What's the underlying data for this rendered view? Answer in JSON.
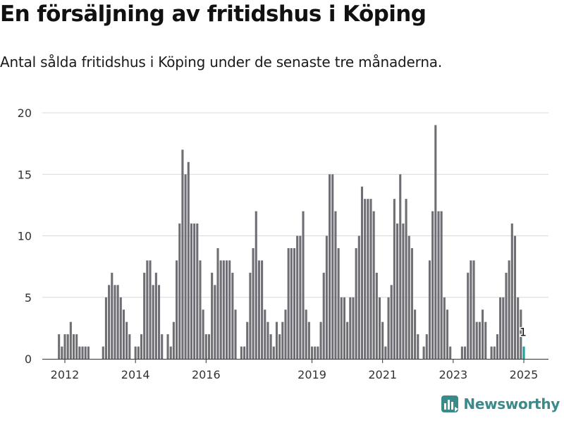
{
  "title": "En försäljning av fritidshus i Köping",
  "subtitle": "Antal sålda fritidshus i Köping under de senaste tre månaderna.",
  "brand": "Newsworthy",
  "colors": {
    "bar": "#6e6e74",
    "highlight": "#1f9e9a",
    "grid": "#d9d9d9",
    "axis": "#333333",
    "brand": "#3a8a8a"
  },
  "chart_data": {
    "type": "bar",
    "title": "En försäljning av fritidshus i Köping",
    "xlabel": "",
    "ylabel": "",
    "ylim": [
      0,
      20
    ],
    "yticks": [
      0,
      5,
      10,
      15,
      20
    ],
    "grid": true,
    "x_start": "2012-01",
    "x_end": "2025-01",
    "xticks": [
      {
        "label": "2012",
        "date": "2012-01"
      },
      {
        "label": "2014",
        "date": "2014-01"
      },
      {
        "label": "2016",
        "date": "2016-01"
      },
      {
        "label": "2019",
        "date": "2019-01"
      },
      {
        "label": "2021",
        "date": "2021-01"
      },
      {
        "label": "2023",
        "date": "2023-01"
      },
      {
        "label": "2025",
        "date": "2025-01"
      }
    ],
    "values": [
      2,
      1,
      2,
      2,
      3,
      2,
      2,
      1,
      1,
      1,
      1,
      0,
      0,
      0,
      0,
      1,
      5,
      6,
      7,
      6,
      6,
      5,
      4,
      3,
      2,
      0,
      1,
      1,
      2,
      7,
      8,
      8,
      6,
      7,
      6,
      2,
      0,
      2,
      1,
      3,
      8,
      11,
      17,
      15,
      16,
      11,
      11,
      11,
      8,
      4,
      2,
      2,
      7,
      6,
      9,
      8,
      8,
      8,
      8,
      7,
      4,
      0,
      1,
      1,
      3,
      7,
      9,
      12,
      8,
      8,
      4,
      3,
      2,
      1,
      3,
      2,
      3,
      4,
      9,
      9,
      9,
      10,
      10,
      12,
      4,
      3,
      1,
      1,
      1,
      3,
      7,
      10,
      15,
      15,
      12,
      9,
      5,
      5,
      3,
      5,
      5,
      9,
      10,
      14,
      13,
      13,
      13,
      12,
      7,
      5,
      3,
      1,
      5,
      6,
      13,
      11,
      15,
      11,
      13,
      10,
      9,
      4,
      2,
      0,
      1,
      2,
      8,
      12,
      19,
      12,
      12,
      5,
      4,
      1,
      0,
      0,
      0,
      1,
      1,
      7,
      8,
      8,
      3,
      3,
      4,
      3,
      0,
      1,
      1,
      2,
      5,
      5,
      7,
      8,
      11,
      10,
      5,
      4,
      1
    ],
    "highlight": {
      "value": 1,
      "label": "1",
      "date": "2025-01"
    }
  }
}
